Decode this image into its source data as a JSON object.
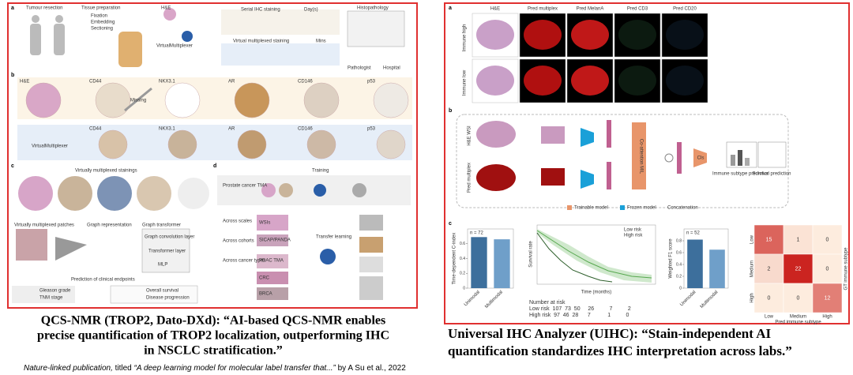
{
  "left_figure": {
    "panel_letters": [
      "a",
      "b",
      "c",
      "d"
    ],
    "labels": [
      "Tumour resection",
      "Tissue preparation",
      "Fixation",
      "Embedding",
      "Sectioning",
      "H&E",
      "Serial IHC staining",
      "Day(s)",
      "Histopathology",
      "VirtualMultiplexer",
      "Virtual multiplexed staining",
      "Mins",
      "Pathologist",
      "Hospital"
    ],
    "stains": [
      "H&E",
      "CD44",
      "NKX3.1",
      "AR",
      "CD146",
      "p53"
    ],
    "missing": "Missing",
    "b_model": "VirtualMultiplexer",
    "c_labels": [
      "Virtually multiplexed stainings",
      "Virtually multiplexed patches",
      "Graph representation",
      "Graph transformer",
      "Graph convolution layer",
      "Transformer layer",
      "MLP",
      "Prediction of clinical endpoints",
      "Gleason grade",
      "TNM stage",
      "Overall survival",
      "Disease progression"
    ],
    "d_labels": [
      "Training",
      "Prostate cancer TMA",
      "Across scales",
      "Across cohorts",
      "Across cancer types",
      "WSIs",
      "SICAP/PANDA",
      "PDAC TMA",
      "CRC",
      "BRCA",
      "Transfer learning"
    ]
  },
  "right_figure": {
    "panel_letters": [
      "a",
      "b",
      "c"
    ],
    "column_headers": [
      "H&E",
      "Pred multiplex",
      "Pred MelanA",
      "Pred CD3",
      "Pred CD20"
    ],
    "row_labels": [
      "Immune high",
      "Immune low"
    ],
    "b_labels": [
      "H&E WSI",
      "Pred multiplex",
      "Co-attention MIL",
      "Cls",
      "Immune subtype prediction",
      "Survival prediction",
      "Trainable model",
      "Frozen model",
      "Concatenation"
    ],
    "bar_charts": [
      {
        "type": "bar",
        "n_label": "n = 72",
        "ylabel": "Time-dependent C-index",
        "categories": [
          "Unimodal",
          "Multimodal"
        ],
        "values": [
          0.69,
          0.66
        ],
        "ylim": [
          0,
          0.8
        ],
        "yticks": [
          0,
          0.2,
          0.4,
          0.6
        ],
        "colors": [
          "#3d6f9c",
          "#6f9fc9"
        ]
      },
      {
        "type": "bar",
        "n_label": "n = 52",
        "ylabel": "Weighted F1 score",
        "categories": [
          "Unimodal",
          "Multimodal"
        ],
        "values": [
          0.82,
          0.65
        ],
        "ylim": [
          0,
          1
        ],
        "yticks": [
          0,
          0.2,
          0.4,
          0.6,
          0.8
        ],
        "colors": [
          "#3d6f9c",
          "#6f9fc9"
        ]
      }
    ],
    "km": {
      "legend": [
        "Low risk",
        "High risk"
      ],
      "xlabel": "Time (months)",
      "ylabel": "Survival rate",
      "risk_title": "Number at risk",
      "risk_rows": [
        "Low risk  107  73  50     26          7          2",
        "High risk  97  46  28      7           1          0"
      ]
    },
    "heatmap": {
      "type": "heatmap",
      "categories": [
        "Low",
        "Medium",
        "High"
      ],
      "values": [
        [
          15,
          1,
          0
        ],
        [
          2,
          22,
          0
        ],
        [
          0,
          0,
          12
        ]
      ],
      "xlabel": "Pred immune subtype",
      "ylabel": "GT immune subtype"
    }
  },
  "left_caption": [
    "QCS-NMR (TROP2, Dato-DXd): “AI-based QCS-NMR enables",
    "precise quantification of TROP2 localization, outperforming IHC",
    "in NSCLC stratification.”"
  ],
  "source": [
    "Nature-linked publication,",
    " titled ",
    "“A deep learning model for molecular label transfer that...”",
    " by A Su et al., 2022"
  ],
  "right_caption": [
    "Universal IHC Analyzer (UIHC): “Stain-independent AI",
    "quantification standardizes IHC interpretation across labs.”"
  ]
}
